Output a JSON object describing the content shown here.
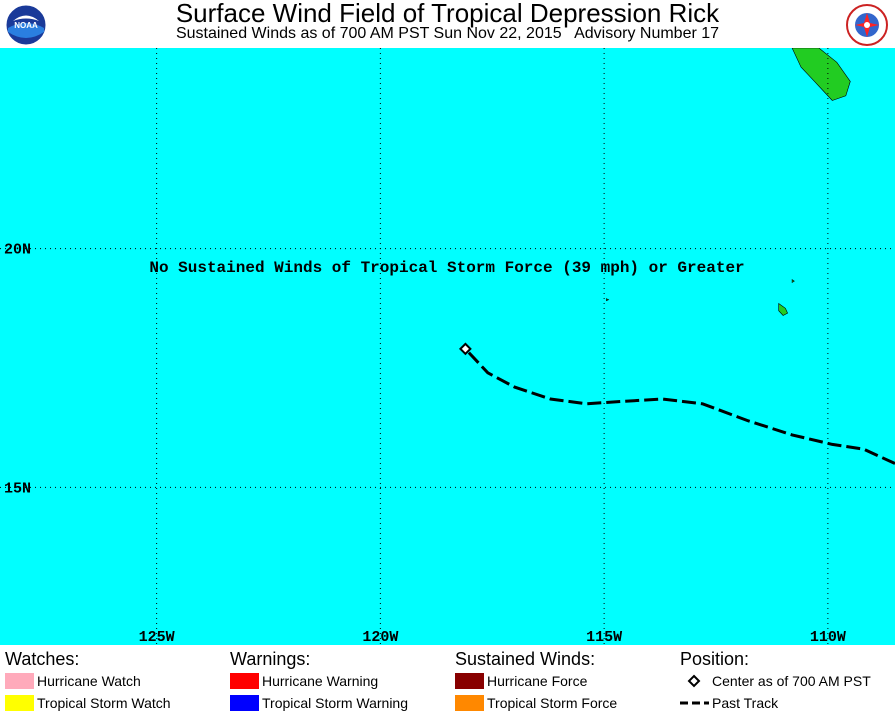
{
  "header": {
    "title": "Surface Wind Field of Tropical Depression Rick",
    "subtitle": "Sustained Winds as of 700 AM PST Sun Nov 22, 2015   Advisory Number 17",
    "left_logo": "noaa-logo",
    "right_logo": "national-weather-service-logo",
    "right_logo_text": "NATIONAL WEATHER SERVICE"
  },
  "map": {
    "extent": {
      "lon": [
        -128.5,
        -108.5
      ],
      "lat": [
        11.7,
        24.2
      ]
    },
    "colors": {
      "ocean": "#00ffff",
      "land": "#22cc22",
      "grid": "#000000",
      "track": "#000000"
    },
    "lon_labels": [
      {
        "lon": -125,
        "label": "125W"
      },
      {
        "lon": -120,
        "label": "120W"
      },
      {
        "lon": -115,
        "label": "115W"
      },
      {
        "lon": -110,
        "label": "110W"
      }
    ],
    "lat_labels": [
      {
        "lat": 20,
        "label": "20N"
      },
      {
        "lat": 15,
        "label": "15N"
      }
    ],
    "message": "No Sustained Winds of Tropical Storm Force (39 mph) or Greater",
    "center": {
      "lon": -118.1,
      "lat": 17.9
    },
    "past_track": [
      [
        -108.5,
        15.5
      ],
      [
        -109.2,
        15.8
      ],
      [
        -109.9,
        15.9
      ],
      [
        -110.8,
        16.1
      ],
      [
        -111.8,
        16.4
      ],
      [
        -112.8,
        16.75
      ],
      [
        -113.7,
        16.85
      ],
      [
        -114.6,
        16.8
      ],
      [
        -115.4,
        16.75
      ],
      [
        -116.2,
        16.85
      ],
      [
        -117.0,
        17.1
      ],
      [
        -117.6,
        17.4
      ],
      [
        -118.1,
        17.9
      ]
    ],
    "land": [
      {
        "name": "baja-california-tip",
        "points": [
          [
            -109.9,
            23.1
          ],
          [
            -109.6,
            23.2
          ],
          [
            -109.5,
            23.5
          ],
          [
            -109.8,
            23.9
          ],
          [
            -110.2,
            24.2
          ],
          [
            -110.8,
            24.2
          ],
          [
            -110.6,
            23.8
          ],
          [
            -110.3,
            23.5
          ],
          [
            -110.1,
            23.3
          ],
          [
            -109.9,
            23.1
          ]
        ]
      },
      {
        "name": "isla-socorro",
        "points": [
          [
            -111.1,
            18.85
          ],
          [
            -110.95,
            18.75
          ],
          [
            -110.9,
            18.65
          ],
          [
            -111.0,
            18.6
          ],
          [
            -111.1,
            18.7
          ],
          [
            -111.1,
            18.85
          ]
        ]
      },
      {
        "name": "isla-san-benedicto",
        "points": [
          [
            -110.8,
            19.35
          ],
          [
            -110.75,
            19.32
          ],
          [
            -110.8,
            19.29
          ],
          [
            -110.8,
            19.35
          ]
        ]
      },
      {
        "name": "roca-partida",
        "points": [
          [
            -114.95,
            18.95
          ],
          [
            -114.9,
            18.93
          ],
          [
            -114.95,
            18.91
          ],
          [
            -114.95,
            18.95
          ]
        ]
      }
    ]
  },
  "legend": {
    "watches": {
      "heading": "Watches:",
      "items": [
        {
          "label": "Hurricane Watch",
          "color": "#ffaabb"
        },
        {
          "label": "Tropical Storm Watch",
          "color": "#ffff00"
        }
      ]
    },
    "warnings": {
      "heading": "Warnings:",
      "items": [
        {
          "label": "Hurricane Warning",
          "color": "#ff0000"
        },
        {
          "label": "Tropical Storm Warning",
          "color": "#0000ff"
        }
      ]
    },
    "winds": {
      "heading": "Sustained Winds:",
      "items": [
        {
          "label": "Hurricane Force",
          "color": "#880000"
        },
        {
          "label": "Tropical Storm Force",
          "color": "#ff8800"
        }
      ]
    },
    "position": {
      "heading": "Position:",
      "items": [
        {
          "label": "Center as of 700 AM PST",
          "symbol": "diamond-icon"
        },
        {
          "label": "Past Track",
          "symbol": "dashed-line-icon"
        }
      ]
    }
  }
}
